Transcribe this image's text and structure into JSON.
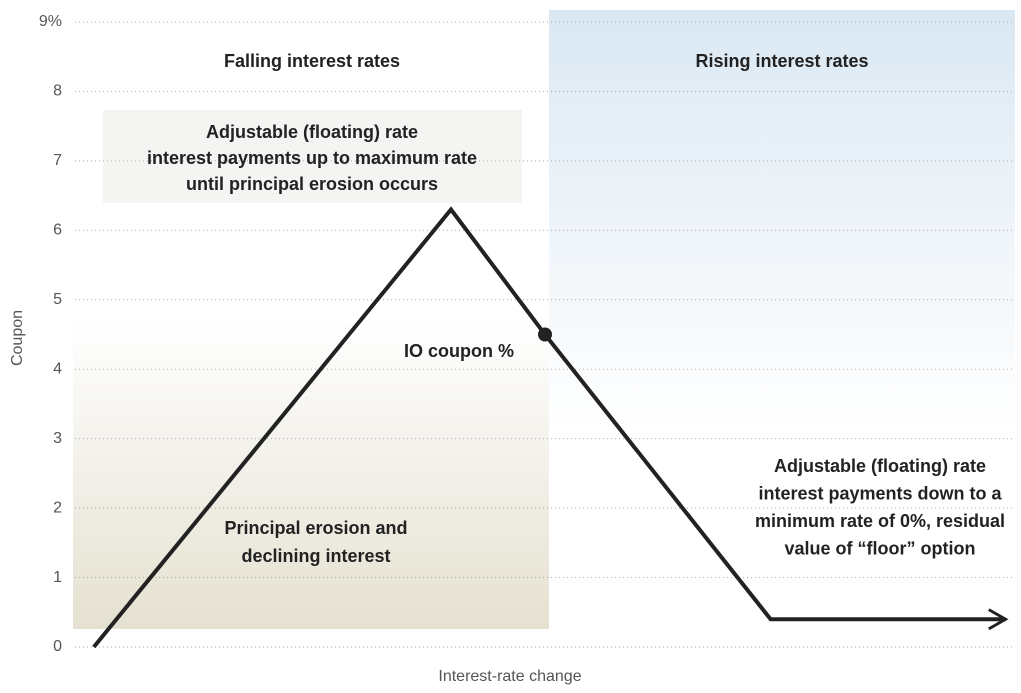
{
  "chart_data": {
    "type": "line",
    "x_label": "Interest-rate change",
    "y_label": "Coupon",
    "region_labels": [
      "Falling interest rates",
      "Rising interest rates"
    ],
    "x": [
      2,
      40,
      50,
      74,
      99
    ],
    "series": [
      {
        "color": "#222222",
        "values": [
          0,
          6.3,
          4.5,
          0.4,
          0.4
        ]
      }
    ],
    "xlim": [
      0,
      100
    ],
    "ylim": [
      0,
      9
    ],
    "yticks": [
      0,
      1,
      2,
      3,
      4,
      5,
      6,
      7,
      8,
      {
        "value": 9,
        "label": "9%"
      }
    ],
    "grid": true,
    "annotations": [
      {
        "text": "IO coupon %",
        "x": 50,
        "y": 4.5
      },
      {
        "lines": [
          "Adjustable (floating) rate",
          "interest payments up to maximum rate",
          "until principal erosion occurs"
        ]
      },
      {
        "lines": [
          "Principal erosion and",
          "declining interest"
        ]
      },
      {
        "lines": [
          "Adjustable (floating) rate",
          "interest payments down to a",
          "minimum rate of 0%, residual",
          "value of “floor” option"
        ]
      }
    ]
  }
}
